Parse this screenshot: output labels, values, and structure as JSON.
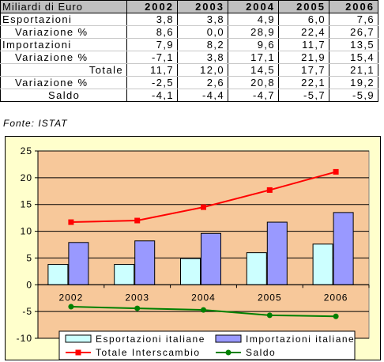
{
  "table": {
    "header_label": "Miliardi di Euro",
    "years": [
      "2002",
      "2003",
      "2004",
      "2005",
      "2006"
    ],
    "rows": [
      {
        "label": "Esportazioni",
        "values": [
          "3,8",
          "3,8",
          "4,9",
          "6,0",
          "7,6"
        ]
      },
      {
        "label": "Variazione %",
        "values": [
          "8,6",
          "0,0",
          "28,9",
          "22,4",
          "26,7"
        ]
      },
      {
        "label": "Importazioni",
        "values": [
          "7,9",
          "8,2",
          "9,6",
          "11,7",
          "13,5"
        ]
      },
      {
        "label": "Variazione %",
        "values": [
          "-7,1",
          "3,8",
          "17,1",
          "21,9",
          "15,4"
        ]
      },
      {
        "label": "Totale",
        "values": [
          "11,7",
          "12,0",
          "14,5",
          "17,7",
          "21,1"
        ]
      },
      {
        "label": "Variazione %",
        "values": [
          "-2,5",
          "2,6",
          "20,8",
          "22,1",
          "19,2"
        ]
      },
      {
        "label": "Saldo",
        "values": [
          "-4,1",
          "-4,4",
          "-4,7",
          "-5,7",
          "-5,9"
        ]
      }
    ]
  },
  "source_note": "Fonte: ISTAT",
  "chart_data": {
    "type": "bar",
    "categories": [
      "2002",
      "2003",
      "2004",
      "2005",
      "2006"
    ],
    "ylim": [
      -10,
      25
    ],
    "yticks": [
      25,
      20,
      15,
      10,
      5,
      0,
      -5,
      -10
    ],
    "ytick_labels": [
      "25",
      "20",
      "15",
      "10",
      "5",
      "0",
      "-5",
      "-10"
    ],
    "plot_background": "#f7c89a",
    "series": [
      {
        "name": "Esportazioni italiane",
        "kind": "bar",
        "color": "#ccffff",
        "values": [
          3.8,
          3.8,
          4.9,
          6.0,
          7.6
        ]
      },
      {
        "name": "Importazioni italiane",
        "kind": "bar",
        "color": "#9999ff",
        "values": [
          7.9,
          8.2,
          9.6,
          11.7,
          13.5
        ]
      },
      {
        "name": "Totale Interscambio",
        "kind": "line",
        "color": "#ff0000",
        "marker": "square",
        "values": [
          11.7,
          12.0,
          14.5,
          17.7,
          21.1
        ]
      },
      {
        "name": "Saldo",
        "kind": "line",
        "color": "#008000",
        "marker": "circle",
        "values": [
          -4.1,
          -4.4,
          -4.7,
          -5.7,
          -5.9
        ]
      }
    ],
    "legend_position": "bottom"
  }
}
